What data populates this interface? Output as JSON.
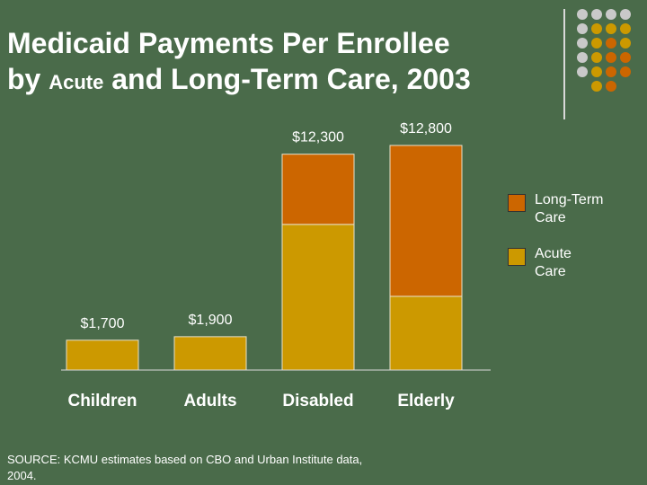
{
  "title": {
    "line1": "Medicaid Payments Per Enrollee",
    "line2_prefix": "by ",
    "line2_small": "Acute",
    "line2_suffix": " and Long-Term Care, 2003"
  },
  "colors": {
    "background": "#4a6b4a",
    "acute": "#cc9900",
    "long_term": "#cc6600",
    "dots_gray": "#c9c9c9",
    "dots_gold": "#cc9900",
    "dots_orange": "#cc6600"
  },
  "chart_data": {
    "type": "bar",
    "stacked": true,
    "title": "Medicaid Payments Per Enrollee by Acute and Long-Term Care, 2003",
    "categories": [
      "Children",
      "Adults",
      "Disabled",
      "Elderly"
    ],
    "series": [
      {
        "name": "Acute Care",
        "values": [
          1700,
          1900,
          8300,
          4200
        ]
      },
      {
        "name": "Long-Term Care",
        "values": [
          0,
          0,
          4000,
          8600
        ]
      }
    ],
    "totals": [
      1700,
      1900,
      12300,
      12800
    ],
    "total_labels": [
      "$1,700",
      "$1,900",
      "$12,300",
      "$12,800"
    ],
    "ylim": [
      0,
      13000
    ],
    "xlabel": "",
    "ylabel": ""
  },
  "legend": {
    "items": [
      {
        "label_line1": "Long-Term",
        "label_line2": "Care"
      },
      {
        "label_line1": "Acute",
        "label_line2": "Care"
      }
    ]
  },
  "source": "SOURCE: KCMU estimates based on CBO and Urban Institute data, 2004."
}
